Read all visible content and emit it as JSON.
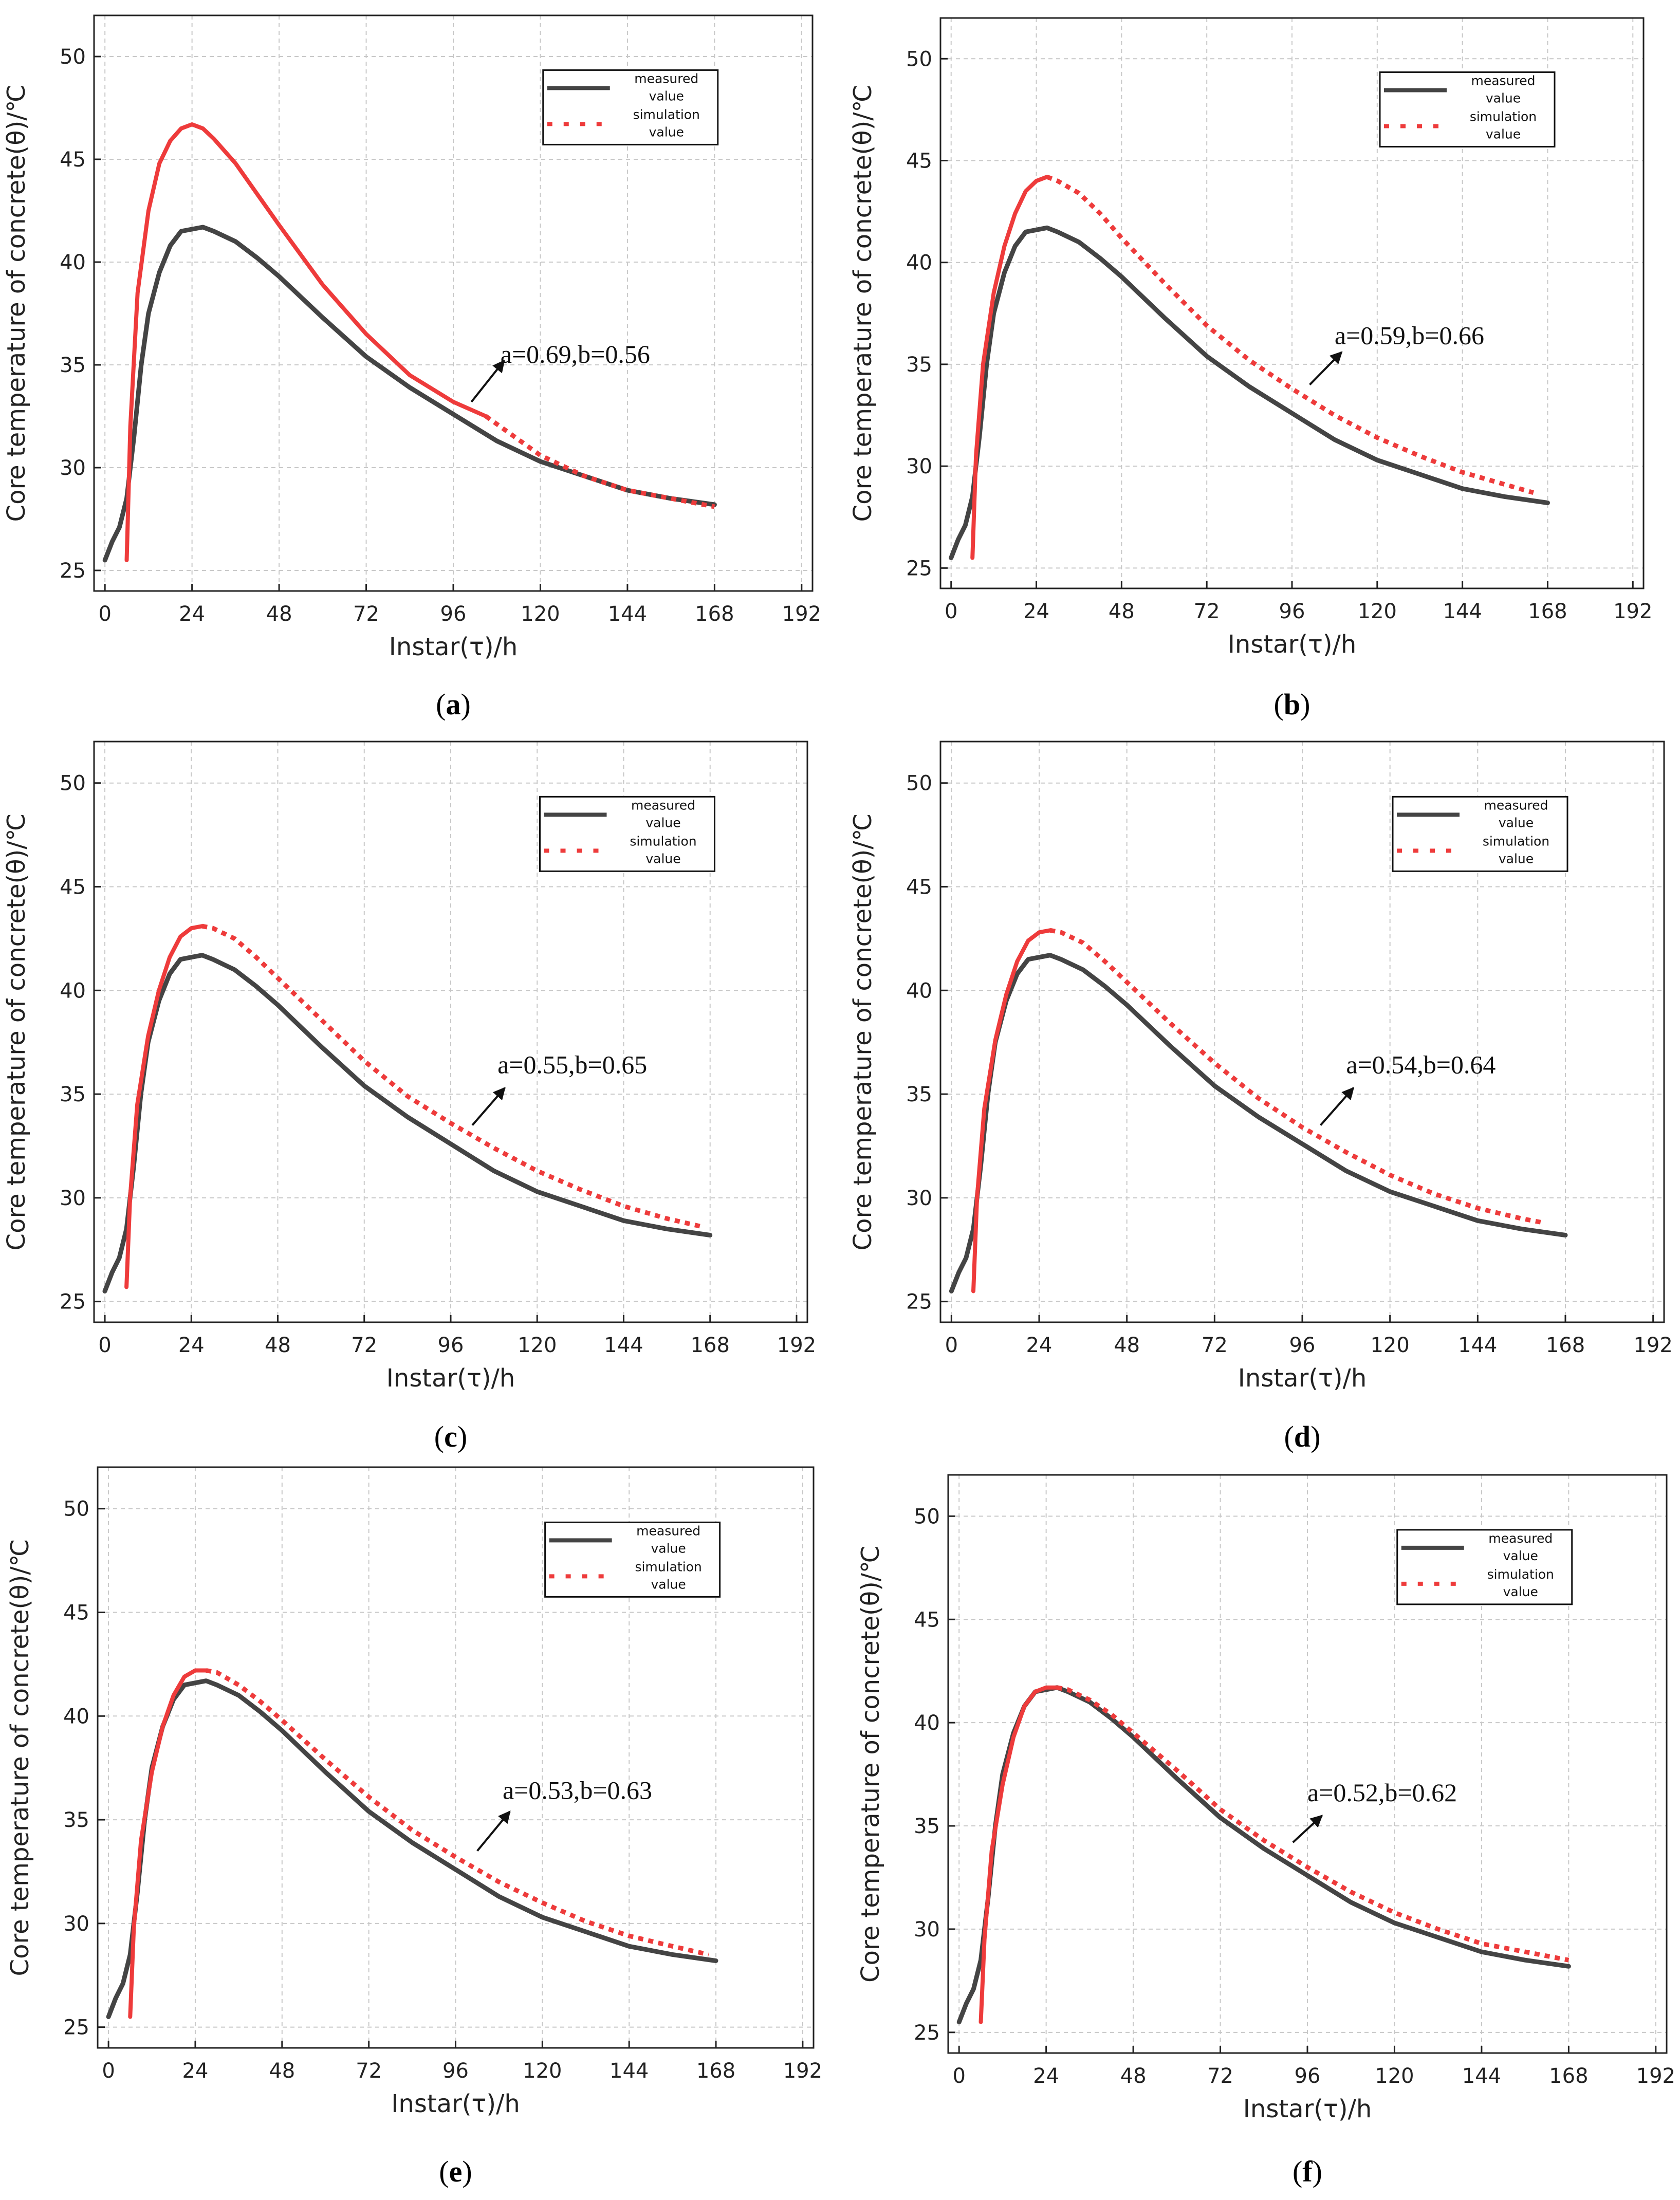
{
  "figure": {
    "panels": [
      "a",
      "b",
      "c",
      "d",
      "e",
      "f"
    ]
  },
  "colors": {
    "measured": "#444444",
    "simulation": "#ee3b3b",
    "grid": "#c8c8c8",
    "axis": "#222222"
  },
  "chart_data": [
    {
      "panel": "a",
      "caption_letter": "a",
      "type": "line",
      "xlabel": "Instar(τ)/h",
      "ylabel": "Core temperature of concrete(θ)/℃",
      "xlim": [
        -3,
        195
      ],
      "ylim": [
        24,
        52
      ],
      "xticks": [
        0,
        24,
        48,
        72,
        96,
        120,
        144,
        168,
        192
      ],
      "yticks": [
        25,
        30,
        35,
        40,
        45,
        50
      ],
      "legend": [
        "measured\nvalue",
        "simulation\nvalue"
      ],
      "annotation": {
        "text": "a=0.69,b=0.56",
        "x": 109,
        "y": 35.1,
        "arrow_from": [
          101,
          33.2
        ],
        "arrow_to": [
          110,
          35.2
        ]
      },
      "series": [
        {
          "name": "measured value",
          "style": "solid",
          "x": [
            0,
            2,
            4,
            6,
            8,
            10,
            12,
            15,
            18,
            21,
            24,
            27,
            30,
            36,
            42,
            48,
            60,
            72,
            84,
            96,
            108,
            120,
            132,
            144,
            156,
            168
          ],
          "y": [
            25.5,
            26.4,
            27.1,
            28.5,
            31.5,
            35.0,
            37.5,
            39.5,
            40.8,
            41.5,
            41.6,
            41.7,
            41.5,
            41.0,
            40.2,
            39.3,
            37.3,
            35.4,
            33.9,
            32.6,
            31.3,
            30.3,
            29.6,
            28.9,
            28.5,
            28.2
          ]
        },
        {
          "name": "simulation value",
          "style": "hybrid",
          "solid_until": 105,
          "x": [
            6,
            7,
            9,
            12,
            15,
            18,
            21,
            24,
            27,
            30,
            36,
            42,
            48,
            60,
            72,
            84,
            96,
            105,
            120,
            132,
            144,
            156,
            168
          ],
          "y": [
            25.5,
            32.0,
            38.5,
            42.5,
            44.8,
            45.9,
            46.5,
            46.7,
            46.5,
            46.0,
            44.8,
            43.3,
            41.8,
            38.9,
            36.5,
            34.5,
            33.2,
            32.5,
            30.6,
            29.6,
            28.9,
            28.5,
            28.1
          ]
        }
      ]
    },
    {
      "panel": "b",
      "caption_letter": "b",
      "type": "line",
      "xlabel": "Instar(τ)/h",
      "ylabel": "Core temperature of concrete(θ)/℃",
      "xlim": [
        -3,
        195
      ],
      "ylim": [
        24,
        52
      ],
      "xticks": [
        0,
        24,
        48,
        72,
        96,
        120,
        144,
        168,
        192
      ],
      "yticks": [
        25,
        30,
        35,
        40,
        45,
        50
      ],
      "legend": [
        "measured\nvalue",
        "simulation\nvalue"
      ],
      "annotation": {
        "text": "a=0.59,b=0.66",
        "x": 108,
        "y": 36.0,
        "arrow_from": [
          101,
          34.0
        ],
        "arrow_to": [
          110,
          35.6
        ]
      },
      "series": [
        {
          "name": "measured value",
          "style": "solid",
          "x": [
            0,
            2,
            4,
            6,
            8,
            10,
            12,
            15,
            18,
            21,
            24,
            27,
            30,
            36,
            42,
            48,
            60,
            72,
            84,
            96,
            108,
            120,
            132,
            144,
            156,
            168
          ],
          "y": [
            25.5,
            26.4,
            27.1,
            28.5,
            31.5,
            35.0,
            37.5,
            39.5,
            40.8,
            41.5,
            41.6,
            41.7,
            41.5,
            41.0,
            40.2,
            39.3,
            37.3,
            35.4,
            33.9,
            32.6,
            31.3,
            30.3,
            29.6,
            28.9,
            28.5,
            28.2
          ]
        },
        {
          "name": "simulation value",
          "style": "hybrid",
          "solid_until": 27,
          "x": [
            6,
            7,
            9,
            12,
            15,
            18,
            21,
            24,
            27,
            30,
            36,
            42,
            48,
            60,
            72,
            84,
            96,
            108,
            120,
            132,
            144,
            156,
            164
          ],
          "y": [
            25.5,
            30.5,
            35.0,
            38.5,
            40.8,
            42.4,
            43.5,
            44.0,
            44.2,
            44.0,
            43.4,
            42.4,
            41.2,
            39.0,
            36.9,
            35.2,
            33.8,
            32.5,
            31.4,
            30.5,
            29.7,
            29.1,
            28.7
          ]
        }
      ]
    },
    {
      "panel": "c",
      "caption_letter": "c",
      "type": "line",
      "xlabel": "Instar(τ)/h",
      "ylabel": "Core temperature of concrete(θ)/℃",
      "xlim": [
        -3,
        195
      ],
      "ylim": [
        24,
        52
      ],
      "xticks": [
        0,
        24,
        48,
        72,
        96,
        120,
        144,
        168,
        192
      ],
      "yticks": [
        25,
        30,
        35,
        40,
        45,
        50
      ],
      "legend": [
        "measured\nvalue",
        "simulation\nvalue"
      ],
      "annotation": {
        "text": "a=0.55,b=0.65",
        "x": 109,
        "y": 36.0,
        "arrow_from": [
          102,
          33.5
        ],
        "arrow_to": [
          111,
          35.3
        ]
      },
      "series": [
        {
          "name": "measured value",
          "style": "solid",
          "x": [
            0,
            2,
            4,
            6,
            8,
            10,
            12,
            15,
            18,
            21,
            24,
            27,
            30,
            36,
            42,
            48,
            60,
            72,
            84,
            96,
            108,
            120,
            132,
            144,
            156,
            168
          ],
          "y": [
            25.5,
            26.4,
            27.1,
            28.5,
            31.5,
            35.0,
            37.5,
            39.5,
            40.8,
            41.5,
            41.6,
            41.7,
            41.5,
            41.0,
            40.2,
            39.3,
            37.3,
            35.4,
            33.9,
            32.6,
            31.3,
            30.3,
            29.6,
            28.9,
            28.5,
            28.2
          ]
        },
        {
          "name": "simulation value",
          "style": "hybrid",
          "solid_until": 27,
          "x": [
            6,
            7,
            9,
            12,
            15,
            18,
            21,
            24,
            27,
            30,
            36,
            42,
            48,
            60,
            72,
            84,
            96,
            108,
            120,
            132,
            144,
            156,
            166
          ],
          "y": [
            25.7,
            30.0,
            34.5,
            37.8,
            40.0,
            41.6,
            42.6,
            43.0,
            43.1,
            43.0,
            42.5,
            41.6,
            40.6,
            38.6,
            36.6,
            34.9,
            33.6,
            32.4,
            31.3,
            30.4,
            29.6,
            29.0,
            28.6
          ]
        }
      ]
    },
    {
      "panel": "d",
      "caption_letter": "d",
      "type": "line",
      "xlabel": "Instar(τ)/h",
      "ylabel": "Core temperature of concrete(θ)/℃",
      "xlim": [
        -3,
        195
      ],
      "ylim": [
        24,
        52
      ],
      "xticks": [
        0,
        24,
        48,
        72,
        96,
        120,
        144,
        168,
        192
      ],
      "yticks": [
        25,
        30,
        35,
        40,
        45,
        50
      ],
      "legend": [
        "measured\nvalue",
        "simulation\nvalue"
      ],
      "annotation": {
        "text": "a=0.54,b=0.64",
        "x": 108,
        "y": 36.0,
        "arrow_from": [
          101,
          33.5
        ],
        "arrow_to": [
          110,
          35.3
        ]
      },
      "series": [
        {
          "name": "measured value",
          "style": "solid",
          "x": [
            0,
            2,
            4,
            6,
            8,
            10,
            12,
            15,
            18,
            21,
            24,
            27,
            30,
            36,
            42,
            48,
            60,
            72,
            84,
            96,
            108,
            120,
            132,
            144,
            156,
            168
          ],
          "y": [
            25.5,
            26.4,
            27.1,
            28.5,
            31.5,
            35.0,
            37.5,
            39.5,
            40.8,
            41.5,
            41.6,
            41.7,
            41.5,
            41.0,
            40.2,
            39.3,
            37.3,
            35.4,
            33.9,
            32.6,
            31.3,
            30.3,
            29.6,
            28.9,
            28.5,
            28.2
          ]
        },
        {
          "name": "simulation value",
          "style": "hybrid",
          "solid_until": 27,
          "x": [
            6,
            7,
            9,
            12,
            15,
            18,
            21,
            24,
            27,
            30,
            36,
            42,
            48,
            60,
            72,
            84,
            96,
            108,
            120,
            132,
            144,
            156,
            162
          ],
          "y": [
            25.5,
            30.0,
            34.3,
            37.6,
            39.8,
            41.4,
            42.4,
            42.8,
            42.9,
            42.8,
            42.3,
            41.4,
            40.4,
            38.4,
            36.5,
            34.8,
            33.4,
            32.2,
            31.1,
            30.2,
            29.5,
            29.0,
            28.8
          ]
        }
      ]
    },
    {
      "panel": "e",
      "caption_letter": "e",
      "type": "line",
      "xlabel": "Instar(τ)/h",
      "ylabel": "Core temperature of concrete(θ)/℃",
      "xlim": [
        -3,
        195
      ],
      "ylim": [
        24,
        52
      ],
      "xticks": [
        0,
        24,
        48,
        72,
        96,
        120,
        144,
        168,
        192
      ],
      "yticks": [
        25,
        30,
        35,
        40,
        45,
        50
      ],
      "legend": [
        "measured\nvalue",
        "simulation\nvalue"
      ],
      "annotation": {
        "text": "a=0.53,b=0.63",
        "x": 109,
        "y": 36.0,
        "arrow_from": [
          102,
          33.5
        ],
        "arrow_to": [
          111,
          35.4
        ]
      },
      "series": [
        {
          "name": "measured value",
          "style": "solid",
          "x": [
            0,
            2,
            4,
            6,
            8,
            10,
            12,
            15,
            18,
            21,
            24,
            27,
            30,
            36,
            42,
            48,
            60,
            72,
            84,
            96,
            108,
            120,
            132,
            144,
            156,
            168
          ],
          "y": [
            25.5,
            26.4,
            27.1,
            28.5,
            31.5,
            35.0,
            37.5,
            39.5,
            40.8,
            41.5,
            41.6,
            41.7,
            41.5,
            41.0,
            40.2,
            39.3,
            37.3,
            35.4,
            33.9,
            32.6,
            31.3,
            30.3,
            29.6,
            28.9,
            28.5,
            28.2
          ]
        },
        {
          "name": "simulation value",
          "style": "hybrid",
          "solid_until": 27,
          "x": [
            6,
            7,
            9,
            12,
            15,
            18,
            21,
            24,
            27,
            30,
            36,
            42,
            48,
            60,
            72,
            84,
            96,
            108,
            120,
            132,
            144,
            156,
            166
          ],
          "y": [
            25.5,
            29.8,
            34.0,
            37.3,
            39.5,
            41.0,
            41.9,
            42.2,
            42.2,
            42.1,
            41.5,
            40.7,
            39.8,
            37.9,
            36.1,
            34.5,
            33.2,
            32.0,
            31.0,
            30.1,
            29.4,
            28.9,
            28.5
          ]
        }
      ]
    },
    {
      "panel": "f",
      "caption_letter": "f",
      "type": "line",
      "xlabel": "Instar(τ)/h",
      "ylabel": "Core temperature of concrete(θ)/℃",
      "xlim": [
        -3,
        195
      ],
      "ylim": [
        24,
        52
      ],
      "xticks": [
        0,
        24,
        48,
        72,
        96,
        120,
        144,
        168,
        192
      ],
      "yticks": [
        25,
        30,
        35,
        40,
        45,
        50
      ],
      "legend": [
        "measured\nvalue",
        "simulation\nvalue"
      ],
      "annotation": {
        "text": "a=0.52,b=0.62",
        "x": 96,
        "y": 36.2,
        "arrow_from": [
          92,
          34.2
        ],
        "arrow_to": [
          100,
          35.5
        ]
      },
      "series": [
        {
          "name": "measured value",
          "style": "solid",
          "x": [
            0,
            2,
            4,
            6,
            8,
            10,
            12,
            15,
            18,
            21,
            24,
            27,
            30,
            36,
            42,
            48,
            60,
            72,
            84,
            96,
            108,
            120,
            132,
            144,
            156,
            168
          ],
          "y": [
            25.5,
            26.4,
            27.1,
            28.5,
            31.5,
            35.0,
            37.5,
            39.5,
            40.8,
            41.5,
            41.6,
            41.7,
            41.5,
            41.0,
            40.2,
            39.3,
            37.3,
            35.4,
            33.9,
            32.6,
            31.3,
            30.3,
            29.6,
            28.9,
            28.5,
            28.2
          ]
        },
        {
          "name": "simulation value",
          "style": "hybrid",
          "solid_until": 27,
          "x": [
            6,
            7,
            9,
            12,
            15,
            18,
            21,
            24,
            27,
            30,
            36,
            42,
            48,
            60,
            72,
            84,
            96,
            108,
            120,
            132,
            144,
            156,
            168
          ],
          "y": [
            25.5,
            29.5,
            33.8,
            37.0,
            39.3,
            40.8,
            41.5,
            41.7,
            41.7,
            41.6,
            41.1,
            40.4,
            39.5,
            37.7,
            35.8,
            34.3,
            33.0,
            31.8,
            30.8,
            30.0,
            29.3,
            28.9,
            28.5
          ]
        }
      ]
    }
  ]
}
